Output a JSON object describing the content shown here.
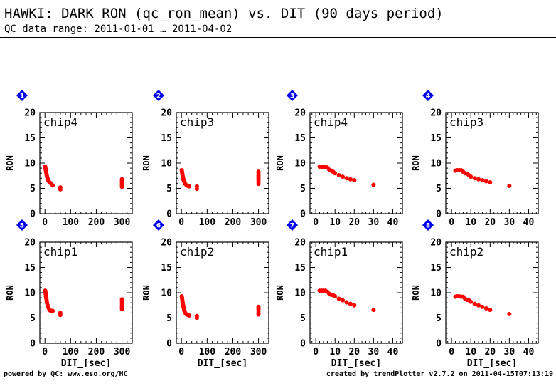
{
  "header": {
    "title": "HAWKI: DARK RON (qc_ron_mean) vs. DIT (90 days period)",
    "subtitle": "QC data range: 2011-01-01 … 2011-04-02"
  },
  "footer": {
    "left": "powered by QC: www.eso.org/HC",
    "right": "created by trendPlotter v2.7.2 on 2011-04-15T07:13:19"
  },
  "colors": {
    "points": "#ff0000",
    "badge": "#0000ee"
  },
  "chart_data": [
    {
      "type": "scatter",
      "panel": "1",
      "label": "chip4",
      "ylabel": "RON",
      "xlabel": "",
      "xlim": [
        -20,
        340
      ],
      "ylim": [
        0,
        20
      ],
      "xticks": [
        0,
        100,
        200,
        300
      ],
      "yticks": [
        0,
        5,
        10,
        15,
        20
      ],
      "points": [
        [
          1,
          9.3
        ],
        [
          2,
          9.0
        ],
        [
          3,
          8.7
        ],
        [
          4,
          8.4
        ],
        [
          5,
          8.1
        ],
        [
          6,
          7.8
        ],
        [
          7,
          7.6
        ],
        [
          8,
          7.3
        ],
        [
          10,
          7.0
        ],
        [
          12,
          6.7
        ],
        [
          15,
          6.4
        ],
        [
          20,
          6.1
        ],
        [
          25,
          5.9
        ],
        [
          30,
          5.6
        ],
        [
          60,
          5.2
        ],
        [
          60,
          4.8
        ],
        [
          300,
          6.8
        ],
        [
          300,
          6.5
        ],
        [
          300,
          6.2
        ],
        [
          300,
          5.9
        ],
        [
          300,
          5.6
        ],
        [
          300,
          5.3
        ]
      ]
    },
    {
      "type": "scatter",
      "panel": "2",
      "label": "chip3",
      "ylabel": "RON",
      "xlabel": "",
      "xlim": [
        -20,
        340
      ],
      "ylim": [
        0,
        20
      ],
      "xticks": [
        0,
        100,
        200,
        300
      ],
      "yticks": [
        0,
        5,
        10,
        15,
        20
      ],
      "points": [
        [
          1,
          8.6
        ],
        [
          2,
          8.3
        ],
        [
          3,
          8.0
        ],
        [
          4,
          7.7
        ],
        [
          5,
          7.4
        ],
        [
          6,
          7.2
        ],
        [
          7,
          6.9
        ],
        [
          8,
          6.7
        ],
        [
          10,
          6.4
        ],
        [
          12,
          6.2
        ],
        [
          15,
          5.9
        ],
        [
          20,
          5.6
        ],
        [
          25,
          5.5
        ],
        [
          30,
          5.4
        ],
        [
          60,
          5.4
        ],
        [
          60,
          4.9
        ],
        [
          300,
          8.3
        ],
        [
          300,
          7.9
        ],
        [
          300,
          7.5
        ],
        [
          300,
          7.1
        ],
        [
          300,
          6.7
        ],
        [
          300,
          6.3
        ],
        [
          300,
          5.9
        ]
      ]
    },
    {
      "type": "scatter",
      "panel": "3",
      "label": "chip4",
      "ylabel": "RON",
      "xlabel": "",
      "xlim": [
        -3,
        45
      ],
      "ylim": [
        0,
        20
      ],
      "xticks": [
        0,
        10,
        20,
        30,
        40
      ],
      "yticks": [
        0,
        5,
        10,
        15,
        20
      ],
      "points": [
        [
          2,
          9.3
        ],
        [
          3,
          9.3
        ],
        [
          4,
          9.2
        ],
        [
          5,
          9.3
        ],
        [
          6,
          9.1
        ],
        [
          7,
          8.7
        ],
        [
          8,
          8.5
        ],
        [
          9,
          8.3
        ],
        [
          10,
          8.0
        ],
        [
          12,
          7.6
        ],
        [
          14,
          7.3
        ],
        [
          16,
          7.0
        ],
        [
          18,
          6.8
        ],
        [
          20,
          6.6
        ],
        [
          30,
          5.7
        ]
      ]
    },
    {
      "type": "scatter",
      "panel": "4",
      "label": "chip3",
      "ylabel": "RON",
      "xlabel": "",
      "xlim": [
        -3,
        45
      ],
      "ylim": [
        0,
        20
      ],
      "xticks": [
        0,
        10,
        20,
        30,
        40
      ],
      "yticks": [
        0,
        5,
        10,
        15,
        20
      ],
      "points": [
        [
          2,
          8.5
        ],
        [
          3,
          8.6
        ],
        [
          4,
          8.6
        ],
        [
          5,
          8.6
        ],
        [
          6,
          8.3
        ],
        [
          7,
          8.0
        ],
        [
          8,
          7.9
        ],
        [
          9,
          7.6
        ],
        [
          10,
          7.3
        ],
        [
          12,
          7.0
        ],
        [
          14,
          6.8
        ],
        [
          16,
          6.6
        ],
        [
          18,
          6.4
        ],
        [
          20,
          6.2
        ],
        [
          30,
          5.5
        ]
      ]
    },
    {
      "type": "scatter",
      "panel": "5",
      "label": "chip1",
      "ylabel": "RON",
      "xlabel": "DIT_[sec]",
      "xlim": [
        -20,
        340
      ],
      "ylim": [
        0,
        20
      ],
      "xticks": [
        0,
        100,
        200,
        300
      ],
      "yticks": [
        0,
        5,
        10,
        15,
        20
      ],
      "points": [
        [
          1,
          10.4
        ],
        [
          2,
          10.1
        ],
        [
          3,
          9.7
        ],
        [
          4,
          9.3
        ],
        [
          5,
          9.0
        ],
        [
          6,
          8.7
        ],
        [
          7,
          8.3
        ],
        [
          8,
          8.0
        ],
        [
          10,
          7.6
        ],
        [
          12,
          7.2
        ],
        [
          15,
          6.9
        ],
        [
          20,
          6.5
        ],
        [
          25,
          6.4
        ],
        [
          30,
          6.4
        ],
        [
          60,
          6.0
        ],
        [
          60,
          5.6
        ],
        [
          300,
          8.7
        ],
        [
          300,
          8.3
        ],
        [
          300,
          7.9
        ],
        [
          300,
          7.5
        ],
        [
          300,
          7.1
        ],
        [
          300,
          6.7
        ]
      ]
    },
    {
      "type": "scatter",
      "panel": "6",
      "label": "chip2",
      "ylabel": "RON",
      "xlabel": "DIT_[sec]",
      "xlim": [
        -20,
        340
      ],
      "ylim": [
        0,
        20
      ],
      "xticks": [
        0,
        100,
        200,
        300
      ],
      "yticks": [
        0,
        5,
        10,
        15,
        20
      ],
      "points": [
        [
          1,
          9.3
        ],
        [
          2,
          9.0
        ],
        [
          3,
          8.7
        ],
        [
          4,
          8.3
        ],
        [
          5,
          8.0
        ],
        [
          6,
          7.7
        ],
        [
          7,
          7.4
        ],
        [
          8,
          7.1
        ],
        [
          10,
          6.7
        ],
        [
          12,
          6.4
        ],
        [
          15,
          6.0
        ],
        [
          20,
          5.7
        ],
        [
          25,
          5.6
        ],
        [
          30,
          5.5
        ],
        [
          60,
          5.4
        ],
        [
          60,
          5.0
        ],
        [
          300,
          7.2
        ],
        [
          300,
          6.8
        ],
        [
          300,
          6.4
        ],
        [
          300,
          6.0
        ],
        [
          300,
          5.7
        ]
      ]
    },
    {
      "type": "scatter",
      "panel": "7",
      "label": "chip1",
      "ylabel": "RON",
      "xlabel": "DIT_[sec]",
      "xlim": [
        -3,
        45
      ],
      "ylim": [
        0,
        20
      ],
      "xticks": [
        0,
        10,
        20,
        30,
        40
      ],
      "yticks": [
        0,
        5,
        10,
        15,
        20
      ],
      "points": [
        [
          2,
          10.4
        ],
        [
          3,
          10.4
        ],
        [
          4,
          10.4
        ],
        [
          5,
          10.4
        ],
        [
          6,
          10.2
        ],
        [
          7,
          9.8
        ],
        [
          8,
          9.6
        ],
        [
          9,
          9.5
        ],
        [
          10,
          9.3
        ],
        [
          12,
          8.8
        ],
        [
          14,
          8.5
        ],
        [
          16,
          8.1
        ],
        [
          18,
          7.8
        ],
        [
          20,
          7.5
        ],
        [
          30,
          6.6
        ]
      ]
    },
    {
      "type": "scatter",
      "panel": "8",
      "label": "chip2",
      "ylabel": "RON",
      "xlabel": "DIT_[sec]",
      "xlim": [
        -3,
        45
      ],
      "ylim": [
        0,
        20
      ],
      "xticks": [
        0,
        10,
        20,
        30,
        40
      ],
      "yticks": [
        0,
        5,
        10,
        15,
        20
      ],
      "points": [
        [
          2,
          9.2
        ],
        [
          3,
          9.3
        ],
        [
          4,
          9.3
        ],
        [
          5,
          9.2
        ],
        [
          6,
          9.2
        ],
        [
          7,
          8.8
        ],
        [
          8,
          8.6
        ],
        [
          9,
          8.5
        ],
        [
          10,
          8.2
        ],
        [
          12,
          7.8
        ],
        [
          14,
          7.5
        ],
        [
          16,
          7.2
        ],
        [
          18,
          6.9
        ],
        [
          20,
          6.6
        ],
        [
          30,
          5.8
        ]
      ]
    }
  ]
}
